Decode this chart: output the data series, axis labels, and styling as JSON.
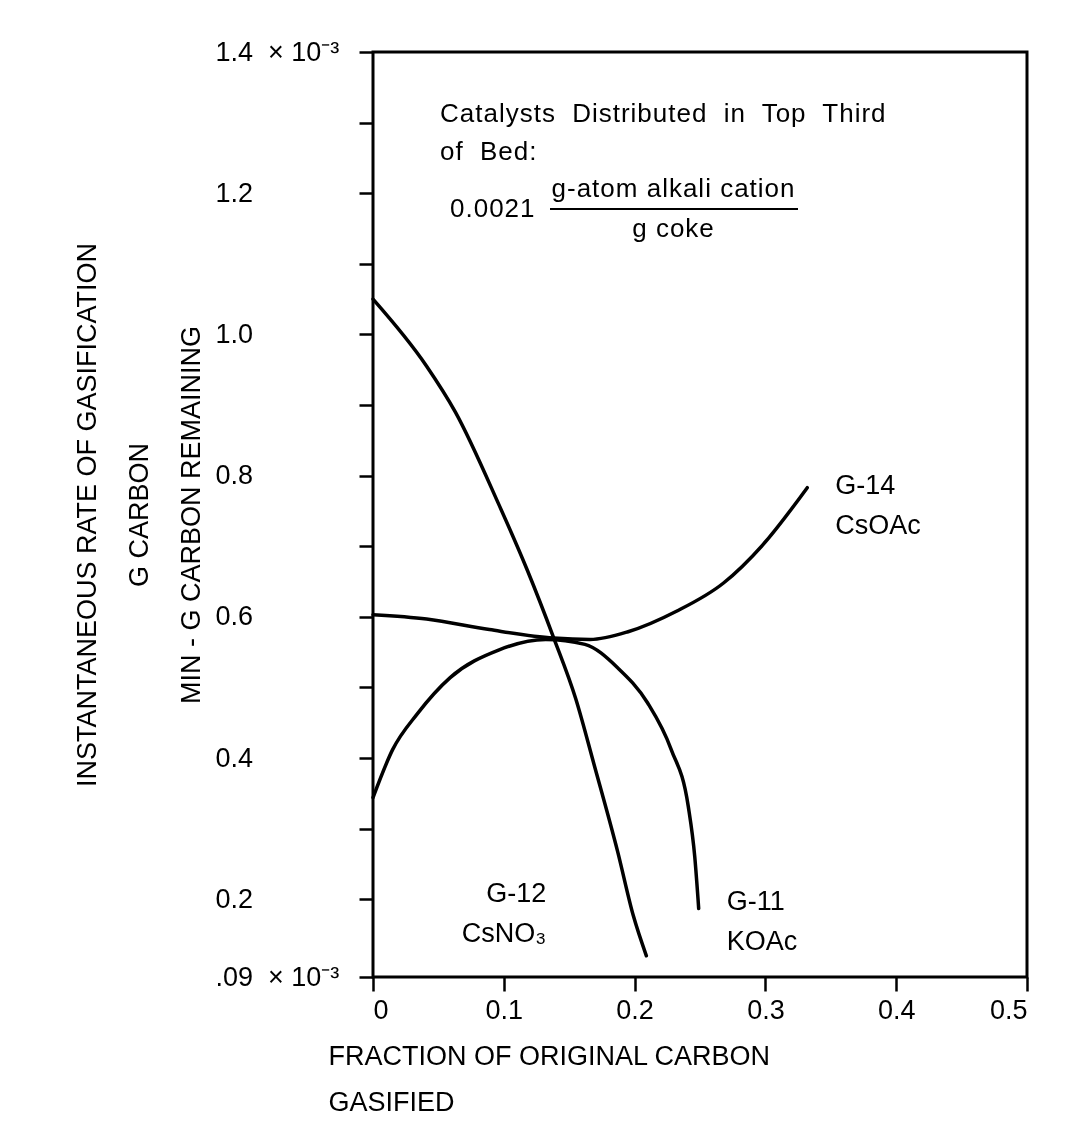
{
  "chart_data": {
    "type": "line",
    "xlabel": "FRACTION OF ORIGINAL CARBON\nGASIFIED",
    "ylabel": "INSTANTANEOUS RATE OF GASIFICATION\nG CARBON\nMIN - G CARBON REMAINING",
    "annotations": [
      "Catalysts Distributed in Top Third of Bed:",
      "0.0021",
      "g-atom alkali cation",
      "g coke",
      "× 10⁻³",
      "× 10⁻³"
    ],
    "xlim": [
      0,
      0.5
    ],
    "xticks": [
      {
        "value": 0,
        "label": "0"
      },
      {
        "value": 0.1,
        "label": "0.1"
      },
      {
        "value": 0.2,
        "label": "0.2"
      },
      {
        "value": 0.3,
        "label": "0.3"
      },
      {
        "value": 0.4,
        "label": "0.4"
      },
      {
        "value": 0.5,
        "label": "0.5"
      }
    ],
    "ylim": [
      0.09,
      1.4
    ],
    "yticks": [
      {
        "value": 0.09,
        "label": ".09"
      },
      {
        "value": 0.2,
        "label": "0.2"
      },
      {
        "value": 0.3,
        "label": null
      },
      {
        "value": 0.4,
        "label": "0.4"
      },
      {
        "value": 0.5,
        "label": null
      },
      {
        "value": 0.6,
        "label": "0.6"
      },
      {
        "value": 0.7,
        "label": null
      },
      {
        "value": 0.8,
        "label": "0.8"
      },
      {
        "value": 0.9,
        "label": null
      },
      {
        "value": 1.0,
        "label": "1.0"
      },
      {
        "value": 1.1,
        "label": null
      },
      {
        "value": 1.2,
        "label": "1.2"
      },
      {
        "value": 1.3,
        "label": null
      },
      {
        "value": 1.4,
        "label": "1.4"
      }
    ],
    "grid": false,
    "legend": false,
    "marker": "none",
    "line_style": "solid",
    "series": [
      {
        "name": "G-12 CsNO₃",
        "color": "#000000",
        "x": [
          0,
          0.041,
          0.063,
          0.096,
          0.118,
          0.138,
          0.155,
          0.169,
          0.187,
          0.199,
          0.209
        ],
        "values": [
          1.05,
          0.955,
          0.89,
          0.76,
          0.666,
          0.571,
          0.484,
          0.391,
          0.268,
          0.177,
          0.12
        ]
      },
      {
        "name": "G-11 KOAc",
        "color": "#000000",
        "x": [
          0,
          0.015,
          0.034,
          0.059,
          0.096,
          0.132,
          0.162,
          0.187,
          0.21,
          0.228,
          0.241,
          0.246,
          0.249
        ],
        "values": [
          0.344,
          0.412,
          0.463,
          0.514,
          0.553,
          0.568,
          0.561,
          0.528,
          0.478,
          0.412,
          0.332,
          0.26,
          0.187
        ]
      },
      {
        "name": "G-14 CsOAc",
        "color": "#000000",
        "x": [
          0,
          0.041,
          0.089,
          0.138,
          0.166,
          0.195,
          0.232,
          0.268,
          0.298,
          0.332
        ],
        "values": [
          0.603,
          0.597,
          0.582,
          0.57,
          0.568,
          0.579,
          0.608,
          0.648,
          0.702,
          0.783
        ]
      }
    ]
  }
}
